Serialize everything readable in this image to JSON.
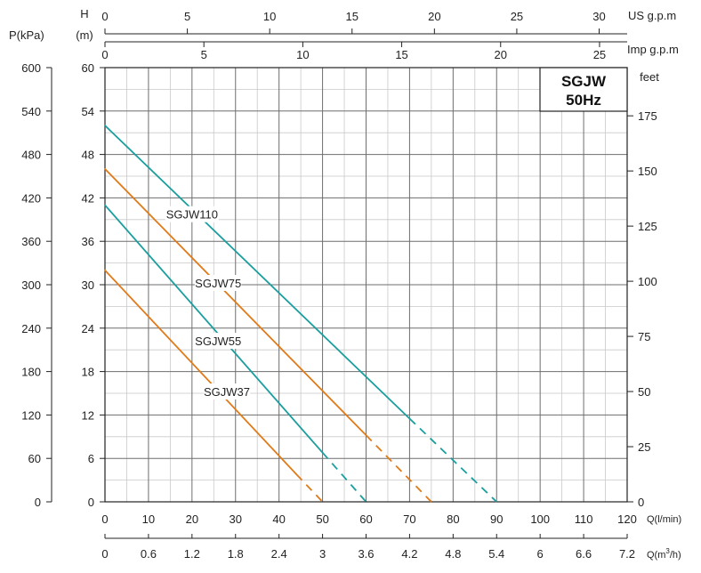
{
  "chart_data": {
    "type": "line",
    "badge": {
      "line1": "SGJW",
      "line2": "50Hz"
    },
    "axes": {
      "left_h": {
        "label_top": "H",
        "label_unit": "(m)",
        "range": [
          0,
          60
        ],
        "ticks": [
          0,
          6,
          12,
          18,
          24,
          30,
          36,
          42,
          48,
          54,
          60
        ]
      },
      "left_p": {
        "label": "P(kPa)",
        "ticks": [
          "0",
          "60",
          "120",
          "180",
          "240",
          "300",
          "360",
          "420",
          "480",
          "540",
          "600"
        ]
      },
      "right_feet": {
        "label": "feet",
        "ticks": [
          0,
          25,
          50,
          75,
          100,
          125,
          150,
          175
        ]
      },
      "bottom_lmin": {
        "label": "Q(l/min)",
        "range": [
          0,
          120
        ],
        "ticks": [
          0,
          10,
          20,
          30,
          40,
          50,
          60,
          70,
          80,
          90,
          100,
          110,
          120
        ]
      },
      "bottom_m3h": {
        "label": "Q(m",
        "label_sup": "3",
        "label_end": "/h)",
        "ticks": [
          "0",
          "0.6",
          "1.2",
          "1.8",
          "2.4",
          "3",
          "3.6",
          "4.2",
          "4.8",
          "5.4",
          "6",
          "6.6",
          "7.2"
        ]
      },
      "top_us": {
        "label": "US g.p.m",
        "ticks": [
          0,
          5,
          10,
          15,
          20,
          25,
          30
        ]
      },
      "top_imp": {
        "label": "Imp g.p.m",
        "ticks": [
          0,
          5,
          10,
          15,
          20,
          25
        ]
      }
    },
    "grid": true,
    "series": [
      {
        "name": "SGJW110",
        "color": "#1a9e9e",
        "points": [
          [
            0,
            52
          ],
          [
            70,
            11.5
          ]
        ],
        "dashed_to": [
          90,
          0
        ],
        "label_at": [
          20,
          39.5
        ]
      },
      {
        "name": "SGJW75",
        "color": "#e07b1a",
        "points": [
          [
            0,
            46
          ],
          [
            60,
            9.2
          ]
        ],
        "dashed_to": [
          75,
          0
        ],
        "label_at": [
          26,
          30
        ]
      },
      {
        "name": "SGJW55",
        "color": "#1a9e9e",
        "points": [
          [
            0,
            41
          ],
          [
            50,
            6.8
          ]
        ],
        "dashed_to": [
          60,
          0
        ],
        "label_at": [
          26,
          22
        ]
      },
      {
        "name": "SGJW37",
        "color": "#e07b1a",
        "points": [
          [
            0,
            32
          ],
          [
            44,
            3.8
          ]
        ],
        "dashed_to": [
          50,
          0
        ],
        "label_at": [
          28,
          15
        ]
      }
    ]
  }
}
